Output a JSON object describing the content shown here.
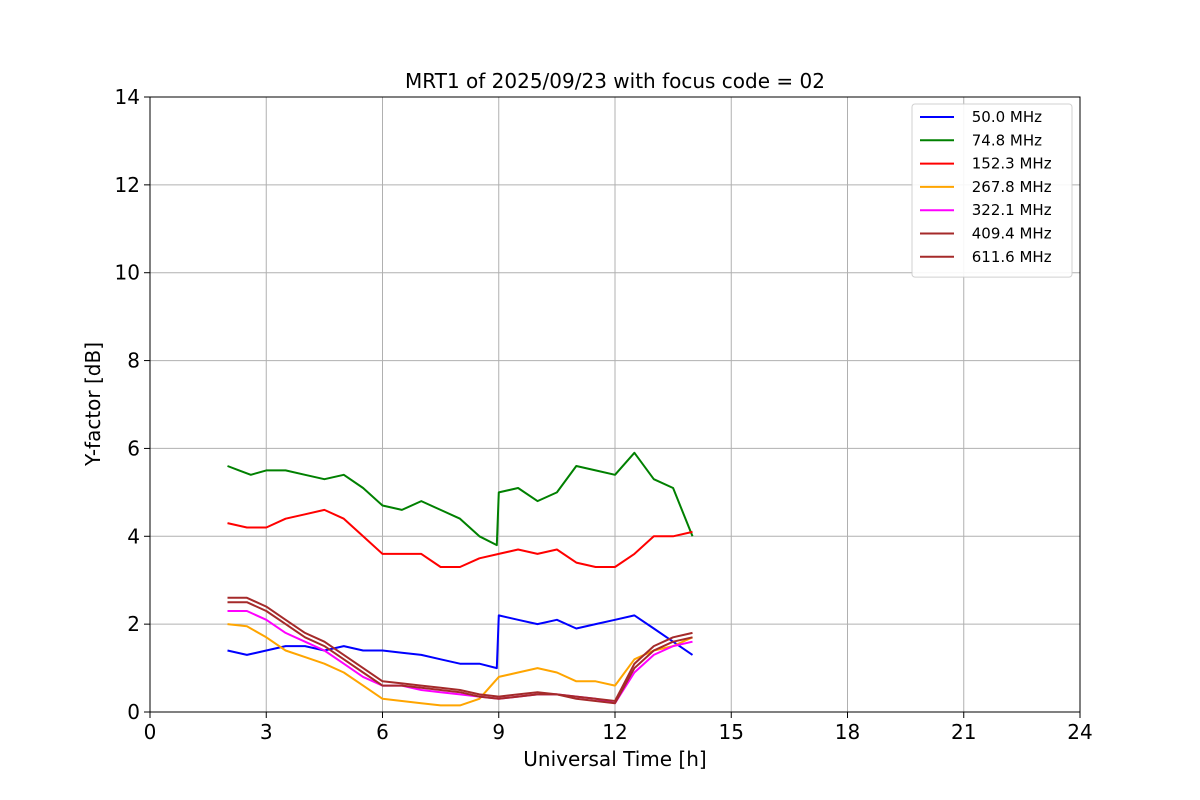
{
  "chart_data": {
    "type": "line",
    "title": "MRT1 of 2025/09/23 with focus code = 02",
    "xlabel": "Universal Time [h]",
    "ylabel": "Y-factor [dB]",
    "xlim": [
      0,
      24
    ],
    "ylim": [
      0,
      14
    ],
    "x_ticks": [
      0,
      3,
      6,
      9,
      12,
      15,
      18,
      21,
      24
    ],
    "y_ticks": [
      0,
      2,
      4,
      6,
      8,
      10,
      12,
      14
    ],
    "grid": true,
    "legend_position": "top-right",
    "series": [
      {
        "name": " 50.0 MHz",
        "color": "#0000ff",
        "x": [
          2.0,
          2.5,
          3.0,
          3.5,
          4.0,
          4.5,
          5.0,
          5.5,
          6.0,
          6.5,
          7.0,
          7.5,
          8.0,
          8.5,
          8.95,
          9.0,
          9.5,
          10.0,
          10.5,
          11.0,
          11.5,
          12.0,
          12.5,
          13.0,
          13.5,
          14.0
        ],
        "y": [
          1.4,
          1.3,
          1.4,
          1.5,
          1.5,
          1.4,
          1.5,
          1.4,
          1.4,
          1.35,
          1.3,
          1.2,
          1.1,
          1.1,
          1.0,
          2.2,
          2.1,
          2.0,
          2.1,
          1.9,
          2.0,
          2.1,
          2.2,
          1.9,
          1.6,
          1.3
        ]
      },
      {
        "name": " 74.8 MHz",
        "color": "#008000",
        "x": [
          2.0,
          2.3,
          2.6,
          3.0,
          3.5,
          4.0,
          4.5,
          5.0,
          5.5,
          6.0,
          6.5,
          7.0,
          7.5,
          8.0,
          8.5,
          8.95,
          9.0,
          9.5,
          10.0,
          10.5,
          11.0,
          11.5,
          12.0,
          12.5,
          13.0,
          13.5,
          14.0
        ],
        "y": [
          5.6,
          5.5,
          5.4,
          5.5,
          5.5,
          5.4,
          5.3,
          5.4,
          5.1,
          4.7,
          4.6,
          4.8,
          4.6,
          4.4,
          4.0,
          3.8,
          5.0,
          5.1,
          4.8,
          5.0,
          5.6,
          5.5,
          5.4,
          5.9,
          5.3,
          5.1,
          4.0
        ]
      },
      {
        "name": " 152.3 MHz",
        "color": "#ff0000",
        "x": [
          2.0,
          2.5,
          3.0,
          3.5,
          4.0,
          4.5,
          5.0,
          5.5,
          6.0,
          6.5,
          7.0,
          7.5,
          8.0,
          8.5,
          9.0,
          9.5,
          10.0,
          10.5,
          11.0,
          11.5,
          12.0,
          12.5,
          13.0,
          13.5,
          14.0
        ],
        "y": [
          4.3,
          4.2,
          4.2,
          4.4,
          4.5,
          4.6,
          4.4,
          4.0,
          3.6,
          3.6,
          3.6,
          3.3,
          3.3,
          3.5,
          3.6,
          3.7,
          3.6,
          3.7,
          3.4,
          3.3,
          3.3,
          3.6,
          4.0,
          4.0,
          4.1
        ]
      },
      {
        "name": " 267.8 MHz",
        "color": "#ffa500",
        "x": [
          2.0,
          2.5,
          3.0,
          3.5,
          4.0,
          4.5,
          5.0,
          5.5,
          6.0,
          6.5,
          7.0,
          7.5,
          8.0,
          8.5,
          9.0,
          9.5,
          10.0,
          10.5,
          11.0,
          11.5,
          12.0,
          12.5,
          13.0,
          13.5,
          14.0
        ],
        "y": [
          2.0,
          1.95,
          1.7,
          1.4,
          1.25,
          1.1,
          0.9,
          0.6,
          0.3,
          0.25,
          0.2,
          0.15,
          0.15,
          0.3,
          0.8,
          0.9,
          1.0,
          0.9,
          0.7,
          0.7,
          0.6,
          1.2,
          1.4,
          1.5,
          1.7
        ]
      },
      {
        "name": " 322.1 MHz",
        "color": "#ff00ff",
        "x": [
          2.0,
          2.5,
          3.0,
          3.5,
          4.0,
          4.5,
          5.0,
          5.5,
          6.0,
          6.5,
          7.0,
          7.5,
          8.0,
          8.5,
          9.0,
          9.5,
          10.0,
          10.5,
          11.0,
          11.5,
          12.0,
          12.5,
          13.0,
          13.5,
          14.0
        ],
        "y": [
          2.3,
          2.3,
          2.1,
          1.8,
          1.6,
          1.4,
          1.1,
          0.8,
          0.6,
          0.6,
          0.5,
          0.45,
          0.4,
          0.35,
          0.3,
          0.35,
          0.4,
          0.4,
          0.35,
          0.3,
          0.2,
          0.9,
          1.3,
          1.5,
          1.6
        ]
      },
      {
        "name": " 409.4 MHz",
        "color": "#a52a2a",
        "x": [
          2.0,
          2.5,
          3.0,
          3.5,
          4.0,
          4.5,
          5.0,
          5.5,
          6.0,
          6.5,
          7.0,
          7.5,
          8.0,
          8.5,
          9.0,
          9.5,
          10.0,
          10.5,
          11.0,
          11.5,
          12.0,
          12.5,
          13.0,
          13.5,
          14.0
        ],
        "y": [
          2.5,
          2.5,
          2.3,
          2.0,
          1.7,
          1.5,
          1.2,
          0.9,
          0.6,
          0.6,
          0.55,
          0.5,
          0.45,
          0.35,
          0.3,
          0.35,
          0.4,
          0.4,
          0.3,
          0.25,
          0.2,
          1.0,
          1.4,
          1.6,
          1.7
        ]
      },
      {
        "name": " 611.6 MHz",
        "color": "#a52a2a",
        "x": [
          2.0,
          2.5,
          3.0,
          3.5,
          4.0,
          4.5,
          5.0,
          5.5,
          6.0,
          6.5,
          7.0,
          7.5,
          8.0,
          8.5,
          9.0,
          9.5,
          10.0,
          10.5,
          11.0,
          11.5,
          12.0,
          12.5,
          13.0,
          13.5,
          14.0
        ],
        "y": [
          2.6,
          2.6,
          2.4,
          2.1,
          1.8,
          1.6,
          1.3,
          1.0,
          0.7,
          0.65,
          0.6,
          0.55,
          0.5,
          0.4,
          0.35,
          0.4,
          0.45,
          0.4,
          0.35,
          0.3,
          0.25,
          1.1,
          1.5,
          1.7,
          1.8
        ]
      }
    ]
  }
}
